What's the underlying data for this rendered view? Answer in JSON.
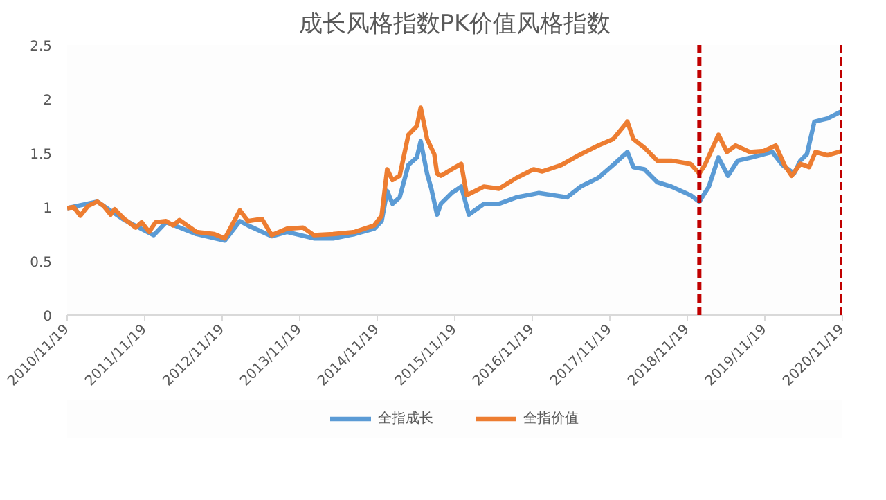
{
  "chart_data": {
    "type": "line",
    "title": "成长风格指数PK价值风格指数",
    "xlim": [
      "2010-11-19",
      "2020-11-19"
    ],
    "xticks": [
      {
        "value": "2010-11-19",
        "label": "2010/11/19"
      },
      {
        "value": "2011-11-19",
        "label": "2011/11/19"
      },
      {
        "value": "2012-11-19",
        "label": "2012/11/19"
      },
      {
        "value": "2013-11-19",
        "label": "2013/11/19"
      },
      {
        "value": "2014-11-19",
        "label": "2014/11/19"
      },
      {
        "value": "2015-11-19",
        "label": "2015/11/19"
      },
      {
        "value": "2016-11-19",
        "label": "2016/11/19"
      },
      {
        "value": "2017-11-19",
        "label": "2017/11/19"
      },
      {
        "value": "2018-11-19",
        "label": "2018/11/19"
      },
      {
        "value": "2019-11-19",
        "label": "2019/11/19"
      },
      {
        "value": "2020-11-19",
        "label": "2020/11/19"
      }
    ],
    "ylim": [
      0,
      2.5
    ],
    "yticks": [
      0,
      0.5,
      1,
      1.5,
      2,
      2.5
    ],
    "grid": false,
    "legend": "bottom",
    "marker": "none",
    "line_style": "solid",
    "series": [
      {
        "name": "全指成长",
        "color": "#5b9bd5",
        "x": [
          "2010-11-19",
          "2011-04-10",
          "2011-08-15",
          "2012-01-01",
          "2012-02-28",
          "2012-07-20",
          "2012-12-01",
          "2013-02-10",
          "2013-03-20",
          "2013-07-10",
          "2013-09-20",
          "2014-01-25",
          "2014-04-25",
          "2014-08-05",
          "2014-11-05",
          "2014-12-10",
          "2015-01-05",
          "2015-01-30",
          "2015-03-05",
          "2015-04-15",
          "2015-05-25",
          "2015-06-12",
          "2015-07-12",
          "2015-08-01",
          "2015-08-28",
          "2015-09-15",
          "2015-11-05",
          "2015-12-20",
          "2016-01-25",
          "2016-04-05",
          "2016-06-15",
          "2016-09-05",
          "2016-12-20",
          "2017-05-01",
          "2017-07-05",
          "2017-09-25",
          "2017-12-05",
          "2018-02-10",
          "2018-03-10",
          "2018-05-01",
          "2018-07-01",
          "2018-09-05",
          "2018-12-05",
          "2019-01-15",
          "2019-03-01",
          "2019-04-15",
          "2019-05-30",
          "2019-07-15",
          "2019-09-20",
          "2019-12-25",
          "2020-02-10",
          "2020-04-05",
          "2020-05-05",
          "2020-06-05",
          "2020-07-10",
          "2020-09-10",
          "2020-11-10"
        ],
        "values": [
          0.99,
          1.05,
          0.88,
          0.74,
          0.86,
          0.75,
          0.69,
          0.87,
          0.83,
          0.73,
          0.77,
          0.71,
          0.71,
          0.75,
          0.8,
          0.87,
          1.15,
          1.03,
          1.09,
          1.39,
          1.46,
          1.61,
          1.31,
          1.17,
          0.93,
          1.03,
          1.13,
          1.19,
          0.93,
          1.03,
          1.03,
          1.09,
          1.13,
          1.09,
          1.19,
          1.27,
          1.39,
          1.51,
          1.37,
          1.35,
          1.23,
          1.19,
          1.11,
          1.05,
          1.19,
          1.46,
          1.29,
          1.43,
          1.46,
          1.51,
          1.39,
          1.31,
          1.43,
          1.49,
          1.79,
          1.82,
          1.88
        ]
      },
      {
        "name": "全指价值",
        "color": "#ed7d31",
        "x": [
          "2010-11-19",
          "2010-12-20",
          "2011-01-20",
          "2011-02-25",
          "2011-04-10",
          "2011-05-10",
          "2011-06-12",
          "2011-07-01",
          "2011-08-15",
          "2011-10-08",
          "2011-11-05",
          "2011-12-10",
          "2012-01-10",
          "2012-02-28",
          "2012-04-01",
          "2012-05-01",
          "2012-07-20",
          "2012-10-12",
          "2012-12-01",
          "2013-02-10",
          "2013-03-20",
          "2013-05-25",
          "2013-07-10",
          "2013-09-20",
          "2013-12-05",
          "2014-01-25",
          "2014-04-25",
          "2014-08-05",
          "2014-11-05",
          "2014-12-10",
          "2015-01-05",
          "2015-01-30",
          "2015-03-05",
          "2015-04-15",
          "2015-05-25",
          "2015-06-12",
          "2015-07-12",
          "2015-08-15",
          "2015-08-28",
          "2015-09-15",
          "2015-11-05",
          "2015-12-20",
          "2016-01-15",
          "2016-04-05",
          "2016-06-15",
          "2016-09-05",
          "2016-11-25",
          "2017-01-05",
          "2017-04-05",
          "2017-07-05",
          "2017-09-25",
          "2017-12-05",
          "2018-02-10",
          "2018-03-10",
          "2018-05-01",
          "2018-07-01",
          "2018-09-05",
          "2018-12-05",
          "2019-01-15",
          "2019-02-10",
          "2019-04-15",
          "2019-05-25",
          "2019-07-05",
          "2019-09-10",
          "2019-11-15",
          "2020-01-10",
          "2020-02-20",
          "2020-03-25",
          "2020-05-05",
          "2020-06-15",
          "2020-07-15",
          "2020-09-10",
          "2020-11-19"
        ],
        "values": [
          0.99,
          1.0,
          0.92,
          1.01,
          1.05,
          1.01,
          0.93,
          0.98,
          0.89,
          0.81,
          0.86,
          0.77,
          0.86,
          0.87,
          0.83,
          0.88,
          0.77,
          0.75,
          0.71,
          0.97,
          0.87,
          0.89,
          0.74,
          0.8,
          0.81,
          0.74,
          0.75,
          0.77,
          0.83,
          0.92,
          1.35,
          1.25,
          1.29,
          1.67,
          1.75,
          1.92,
          1.63,
          1.49,
          1.31,
          1.29,
          1.35,
          1.4,
          1.11,
          1.19,
          1.17,
          1.27,
          1.35,
          1.33,
          1.39,
          1.49,
          1.57,
          1.63,
          1.79,
          1.63,
          1.55,
          1.43,
          1.43,
          1.4,
          1.31,
          1.39,
          1.67,
          1.51,
          1.57,
          1.51,
          1.52,
          1.57,
          1.39,
          1.29,
          1.4,
          1.37,
          1.51,
          1.48,
          1.52
        ]
      }
    ],
    "ref_lines": [
      {
        "axis": "x",
        "value": "2019-01-15",
        "color": "#c00000",
        "line_style": "dashed"
      },
      {
        "axis": "x",
        "value": "2020-11-19",
        "color": "#c00000",
        "line_style": "dashed"
      }
    ]
  }
}
